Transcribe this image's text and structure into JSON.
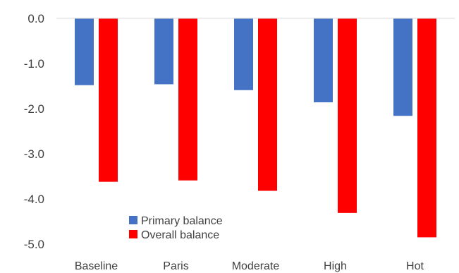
{
  "chart_data": {
    "type": "bar",
    "categories": [
      "Baseline",
      "Paris",
      "Moderate",
      "High",
      "Hot"
    ],
    "series": [
      {
        "name": "Primary balance",
        "color": "#4472C4",
        "values": [
          -1.48,
          -1.46,
          -1.59,
          -1.86,
          -2.16
        ]
      },
      {
        "name": "Overall balance",
        "color": "#FF0000",
        "values": [
          -3.62,
          -3.59,
          -3.82,
          -4.31,
          -4.85
        ]
      }
    ],
    "ylim": [
      -5.0,
      0.0
    ],
    "yticks": [
      "0.0",
      "-1.0",
      "-2.0",
      "-3.0",
      "-4.0",
      "-5.0"
    ],
    "ytick_values": [
      0,
      -1,
      -2,
      -3,
      -4,
      -5
    ],
    "grid": false,
    "legend_position": "bottom-left"
  }
}
